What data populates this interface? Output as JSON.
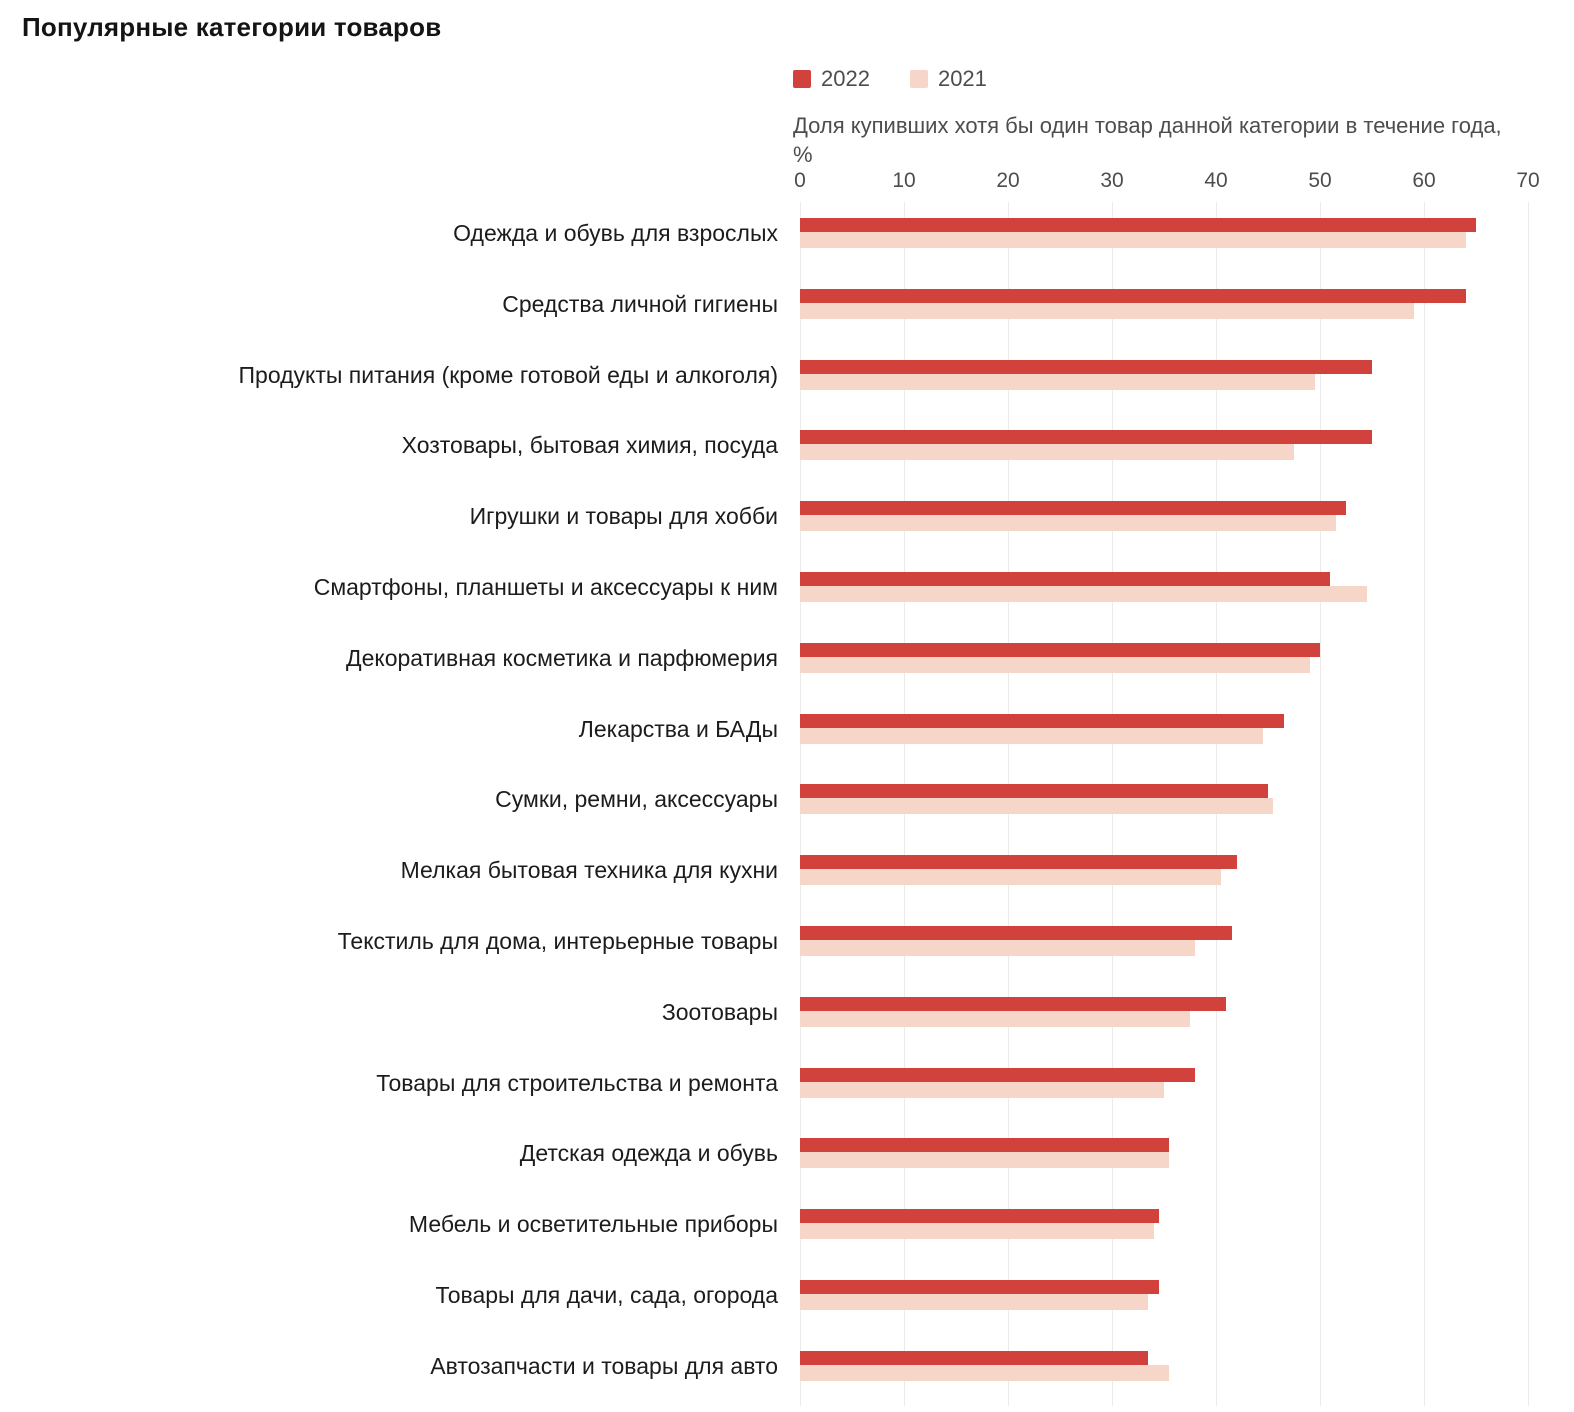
{
  "title": "Популярные категории товаров",
  "subtitle": "Доля купивших хотя бы один товар данной категории в течение года, %",
  "legend": [
    {
      "label": "2022",
      "color": "#d1423c"
    },
    {
      "label": "2021",
      "color": "#f5d6c8"
    }
  ],
  "colors": {
    "series_2022": "#d1423c",
    "series_2021": "#f5d6c8",
    "gridline": "#edeaea",
    "text_primary": "#1c1c1c",
    "text_secondary": "#4d4d4d"
  },
  "chart_data": {
    "type": "bar",
    "orientation": "horizontal",
    "title": "Популярные категории товаров",
    "xlabel": "Доля купивших хотя бы один товар данной категории в течение года, %",
    "ylabel": "",
    "unit": "%",
    "grid": true,
    "legend_position": "top",
    "x_axis": {
      "min": 0,
      "max": 70,
      "ticks": [
        0,
        10,
        20,
        30,
        40,
        50,
        60,
        70
      ]
    },
    "categories": [
      "Одежда и обувь для взрослых",
      "Средства личной гигиены",
      "Продукты питания (кроме готовой еды и алкоголя)",
      "Хозтовары, бытовая химия, посуда",
      "Игрушки и товары для хобби",
      "Смартфоны, планшеты и аксессуары к ним",
      "Декоративная косметика и парфюмерия",
      "Лекарства и БАДы",
      "Сумки, ремни, аксессуары",
      "Мелкая бытовая техника для кухни",
      "Текстиль для дома, интерьерные товары",
      "Зоотовары",
      "Товары для строительства и ремонта",
      "Детская одежда и обувь",
      "Мебель и осветительные приборы",
      "Товары для дачи, сада, огорода",
      "Автозапчасти и товары для авто"
    ],
    "series": [
      {
        "name": "2022",
        "color": "#d1423c",
        "values": [
          65,
          64,
          55,
          55,
          52.5,
          51,
          50,
          46.5,
          45,
          42,
          41.5,
          41,
          38,
          35.5,
          34.5,
          34.5,
          33.5
        ]
      },
      {
        "name": "2021",
        "color": "#f5d6c8",
        "values": [
          64,
          59,
          49.5,
          47.5,
          51.5,
          54.5,
          49,
          44.5,
          45.5,
          40.5,
          38,
          37.5,
          35,
          35.5,
          34,
          33.5,
          35.5
        ]
      }
    ]
  }
}
